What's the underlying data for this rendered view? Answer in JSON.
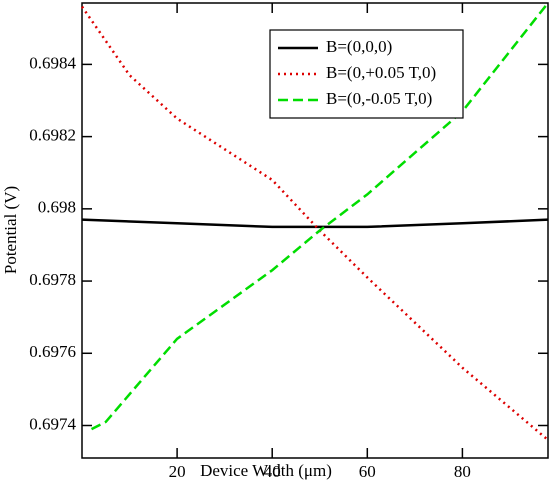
{
  "chart_data": {
    "type": "line",
    "xlabel": "Device Width (μm)",
    "ylabel": "Potential (V)",
    "xlim": [
      0,
      98
    ],
    "xticks": [
      20,
      40,
      60,
      80
    ],
    "ylim": [
      0.69731,
      0.69857
    ],
    "yticks": [
      0.6974,
      0.6976,
      0.6978,
      0.698,
      0.6982,
      0.6984
    ],
    "legend": "upper center",
    "series": [
      {
        "name": "B=(0,0,0)",
        "color": "#000000",
        "style": "solid",
        "x": [
          0,
          20,
          40,
          50,
          60,
          80,
          98
        ],
        "values": [
          0.69797,
          0.69796,
          0.69795,
          0.69795,
          0.69795,
          0.69796,
          0.69797
        ]
      },
      {
        "name": "B=(0,+0.05 T,0)",
        "color": "#dd0000",
        "style": "dotted",
        "x": [
          0,
          10,
          20,
          40,
          50,
          60,
          80,
          98
        ],
        "values": [
          0.69856,
          0.69837,
          0.69825,
          0.69808,
          0.69794,
          0.69781,
          0.69756,
          0.69736
        ]
      },
      {
        "name": "B=(0,-0.05 T,0)",
        "color": "#00dd00",
        "style": "dashed",
        "x": [
          2,
          5,
          20,
          40,
          50,
          60,
          80,
          98
        ],
        "values": [
          0.69739,
          0.69741,
          0.69764,
          0.69783,
          0.69794,
          0.69804,
          0.69827,
          0.69857
        ]
      }
    ]
  }
}
